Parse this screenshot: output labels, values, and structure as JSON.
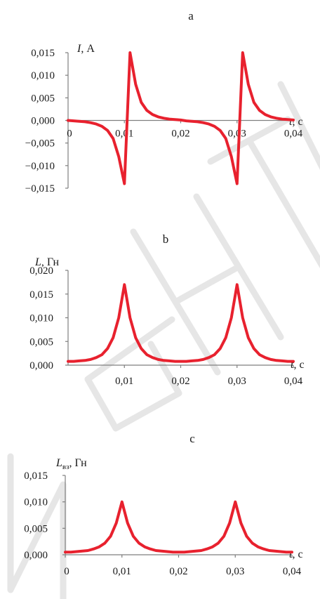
{
  "chart_data": [
    {
      "type": "line",
      "panel_label": "a",
      "ylabel_symbol": "I",
      "ylabel_unit": ", А",
      "ylabel_sub": "",
      "xlabel_symbol": "t",
      "xlabel_unit": ", с",
      "ylim": [
        -0.015,
        0.015
      ],
      "xlim": [
        0,
        0.04
      ],
      "y_ticks": [
        0.015,
        0.01,
        0.005,
        0.0,
        -0.005,
        -0.01,
        -0.015
      ],
      "y_tick_labels": [
        "0,015",
        "0,010",
        "0,005",
        "0,000",
        "−0,005",
        "−0,010",
        "−0,015"
      ],
      "x_ticks": [
        0,
        0.01,
        0.02,
        0.03,
        0.04
      ],
      "x_tick_labels": [
        "0",
        "0,01",
        "0,02",
        "0,03",
        "0,04"
      ],
      "x_labels_at": "zero-line",
      "grid": false,
      "series": [
        {
          "color": "#e8212e",
          "x": [
            0,
            0.001,
            0.002,
            0.003,
            0.004,
            0.005,
            0.006,
            0.007,
            0.008,
            0.009,
            0.01,
            0.011,
            0.012,
            0.013,
            0.014,
            0.015,
            0.016,
            0.017,
            0.018,
            0.019,
            0.02,
            0.021,
            0.022,
            0.023,
            0.024,
            0.025,
            0.026,
            0.027,
            0.028,
            0.029,
            0.03,
            0.031,
            0.032,
            0.033,
            0.034,
            0.035,
            0.036,
            0.037,
            0.038,
            0.039,
            0.04
          ],
          "y": [
            0,
            -0.0001,
            -0.0002,
            -0.0003,
            -0.0005,
            -0.0008,
            -0.0013,
            -0.0022,
            -0.004,
            -0.008,
            -0.014,
            0.015,
            0.008,
            0.004,
            0.0022,
            0.0013,
            0.0008,
            0.0005,
            0.0003,
            0.0002,
            0.0001,
            -0.0001,
            -0.0002,
            -0.0003,
            -0.0005,
            -0.0008,
            -0.0013,
            -0.0022,
            -0.004,
            -0.008,
            -0.014,
            0.015,
            0.008,
            0.004,
            0.0022,
            0.0013,
            0.0008,
            0.0005,
            0.0003,
            0.0002,
            0.0001
          ]
        }
      ]
    },
    {
      "type": "line",
      "panel_label": "b",
      "ylabel_symbol": "L",
      "ylabel_unit": ", Гн",
      "ylabel_sub": "",
      "xlabel_symbol": "t",
      "xlabel_unit": ", с",
      "ylim": [
        0,
        0.02
      ],
      "xlim": [
        0,
        0.04
      ],
      "y_ticks": [
        0.02,
        0.015,
        0.01,
        0.005,
        0.0
      ],
      "y_tick_labels": [
        "0,020",
        "0,015",
        "0,010",
        "0,005",
        "0,000"
      ],
      "x_ticks": [
        0.01,
        0.02,
        0.03,
        0.04
      ],
      "x_tick_labels": [
        "0,01",
        "0,02",
        "0,03",
        "0,04"
      ],
      "x_labels_at": "bottom",
      "grid": false,
      "series": [
        {
          "color": "#e8212e",
          "x": [
            0,
            0.001,
            0.002,
            0.003,
            0.004,
            0.005,
            0.006,
            0.007,
            0.008,
            0.009,
            0.01,
            0.011,
            0.012,
            0.013,
            0.014,
            0.015,
            0.016,
            0.017,
            0.018,
            0.019,
            0.02,
            0.021,
            0.022,
            0.023,
            0.024,
            0.025,
            0.026,
            0.027,
            0.028,
            0.029,
            0.03,
            0.031,
            0.032,
            0.033,
            0.034,
            0.035,
            0.036,
            0.037,
            0.038,
            0.039,
            0.04
          ],
          "y": [
            0.0008,
            0.0008,
            0.0009,
            0.001,
            0.0012,
            0.0016,
            0.0022,
            0.0035,
            0.0058,
            0.01,
            0.017,
            0.01,
            0.0058,
            0.0035,
            0.0022,
            0.0016,
            0.0012,
            0.001,
            0.0009,
            0.0008,
            0.0008,
            0.0008,
            0.0009,
            0.001,
            0.0012,
            0.0016,
            0.0022,
            0.0035,
            0.0058,
            0.01,
            0.017,
            0.01,
            0.0058,
            0.0035,
            0.0022,
            0.0016,
            0.0012,
            0.001,
            0.0009,
            0.0008,
            0.0008
          ]
        }
      ]
    },
    {
      "type": "line",
      "panel_label": "c",
      "ylabel_symbol": "L",
      "ylabel_unit": ", Гн",
      "ylabel_sub": "вз",
      "xlabel_symbol": "t",
      "xlabel_unit": ", с",
      "ylim": [
        0,
        0.015
      ],
      "xlim": [
        0,
        0.04
      ],
      "y_ticks": [
        0.015,
        0.01,
        0.005,
        0.0
      ],
      "y_tick_labels": [
        "0,015",
        "0,010",
        "0,005",
        "0,000"
      ],
      "x_ticks": [
        0,
        0.01,
        0.02,
        0.03,
        0.04
      ],
      "x_tick_labels": [
        "0",
        "0,01",
        "0,02",
        "0,03",
        "0,04"
      ],
      "x_labels_at": "bottom",
      "grid": false,
      "series": [
        {
          "color": "#e8212e",
          "x": [
            0,
            0.001,
            0.002,
            0.003,
            0.004,
            0.005,
            0.006,
            0.007,
            0.008,
            0.009,
            0.01,
            0.011,
            0.012,
            0.013,
            0.014,
            0.015,
            0.016,
            0.017,
            0.018,
            0.019,
            0.02,
            0.021,
            0.022,
            0.023,
            0.024,
            0.025,
            0.026,
            0.027,
            0.028,
            0.029,
            0.03,
            0.031,
            0.032,
            0.033,
            0.034,
            0.035,
            0.036,
            0.037,
            0.038,
            0.039,
            0.04
          ],
          "y": [
            0.0005,
            0.0005,
            0.0006,
            0.0007,
            0.0008,
            0.0011,
            0.0015,
            0.0022,
            0.0035,
            0.006,
            0.01,
            0.006,
            0.0035,
            0.0022,
            0.0015,
            0.0011,
            0.0008,
            0.0007,
            0.0006,
            0.0005,
            0.0005,
            0.0005,
            0.0006,
            0.0007,
            0.0008,
            0.0011,
            0.0015,
            0.0022,
            0.0035,
            0.006,
            0.01,
            0.006,
            0.0035,
            0.0022,
            0.0015,
            0.0011,
            0.0008,
            0.0007,
            0.0006,
            0.0005,
            0.0005
          ]
        }
      ]
    }
  ]
}
